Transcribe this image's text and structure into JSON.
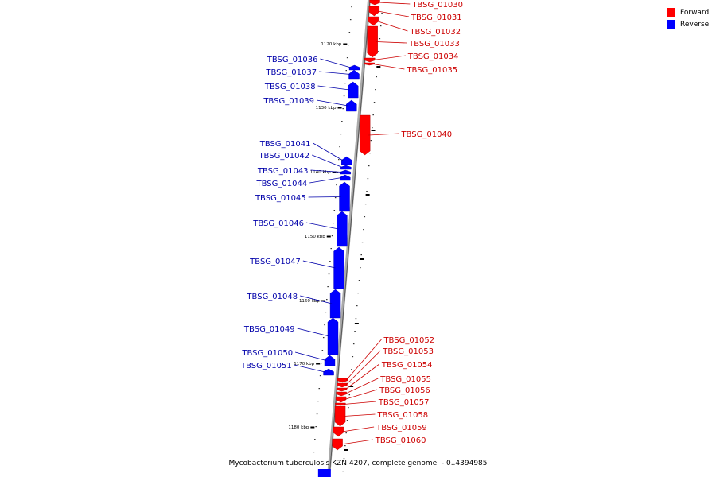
{
  "caption": "Mycobacterium tuberculosis KZN 4207, complete genome. - 0..4394985",
  "colors": {
    "forward": "#ff0000",
    "reverse": "#0000ff",
    "backbone": "#999999",
    "label_forward": "#cc0000",
    "label_reverse": "#0000aa"
  },
  "legend": [
    {
      "label": "Forward",
      "color": "#ff0000"
    },
    {
      "label": "Reverse",
      "color": "#0000ff"
    }
  ],
  "kbp_labels": [
    "1120 kbp",
    "1130 kbp",
    "1140 kbp",
    "1150 kbp",
    "1160 kbp",
    "1170 kbp",
    "1180 kbp"
  ],
  "genes": [
    {
      "id": "TBSG_01030",
      "strand": "forward"
    },
    {
      "id": "TBSG_01031",
      "strand": "forward"
    },
    {
      "id": "TBSG_01032",
      "strand": "forward"
    },
    {
      "id": "TBSG_01033",
      "strand": "forward"
    },
    {
      "id": "TBSG_01034",
      "strand": "forward"
    },
    {
      "id": "TBSG_01035",
      "strand": "forward"
    },
    {
      "id": "TBSG_01036",
      "strand": "reverse"
    },
    {
      "id": "TBSG_01037",
      "strand": "reverse"
    },
    {
      "id": "TBSG_01038",
      "strand": "reverse"
    },
    {
      "id": "TBSG_01039",
      "strand": "reverse"
    },
    {
      "id": "TBSG_01040",
      "strand": "forward"
    },
    {
      "id": "TBSG_01041",
      "strand": "reverse"
    },
    {
      "id": "TBSG_01042",
      "strand": "reverse"
    },
    {
      "id": "TBSG_01043",
      "strand": "reverse"
    },
    {
      "id": "TBSG_01044",
      "strand": "reverse"
    },
    {
      "id": "TBSG_01045",
      "strand": "reverse"
    },
    {
      "id": "TBSG_01046",
      "strand": "reverse"
    },
    {
      "id": "TBSG_01047",
      "strand": "reverse"
    },
    {
      "id": "TBSG_01048",
      "strand": "reverse"
    },
    {
      "id": "TBSG_01049",
      "strand": "reverse"
    },
    {
      "id": "TBSG_01050",
      "strand": "reverse"
    },
    {
      "id": "TBSG_01051",
      "strand": "reverse"
    },
    {
      "id": "TBSG_01052",
      "strand": "forward"
    },
    {
      "id": "TBSG_01053",
      "strand": "forward"
    },
    {
      "id": "TBSG_01054",
      "strand": "forward"
    },
    {
      "id": "TBSG_01055",
      "strand": "forward"
    },
    {
      "id": "TBSG_01056",
      "strand": "forward"
    },
    {
      "id": "TBSG_01057",
      "strand": "forward"
    },
    {
      "id": "TBSG_01058",
      "strand": "forward"
    },
    {
      "id": "TBSG_01059",
      "strand": "forward"
    },
    {
      "id": "TBSG_01060",
      "strand": "forward"
    }
  ]
}
